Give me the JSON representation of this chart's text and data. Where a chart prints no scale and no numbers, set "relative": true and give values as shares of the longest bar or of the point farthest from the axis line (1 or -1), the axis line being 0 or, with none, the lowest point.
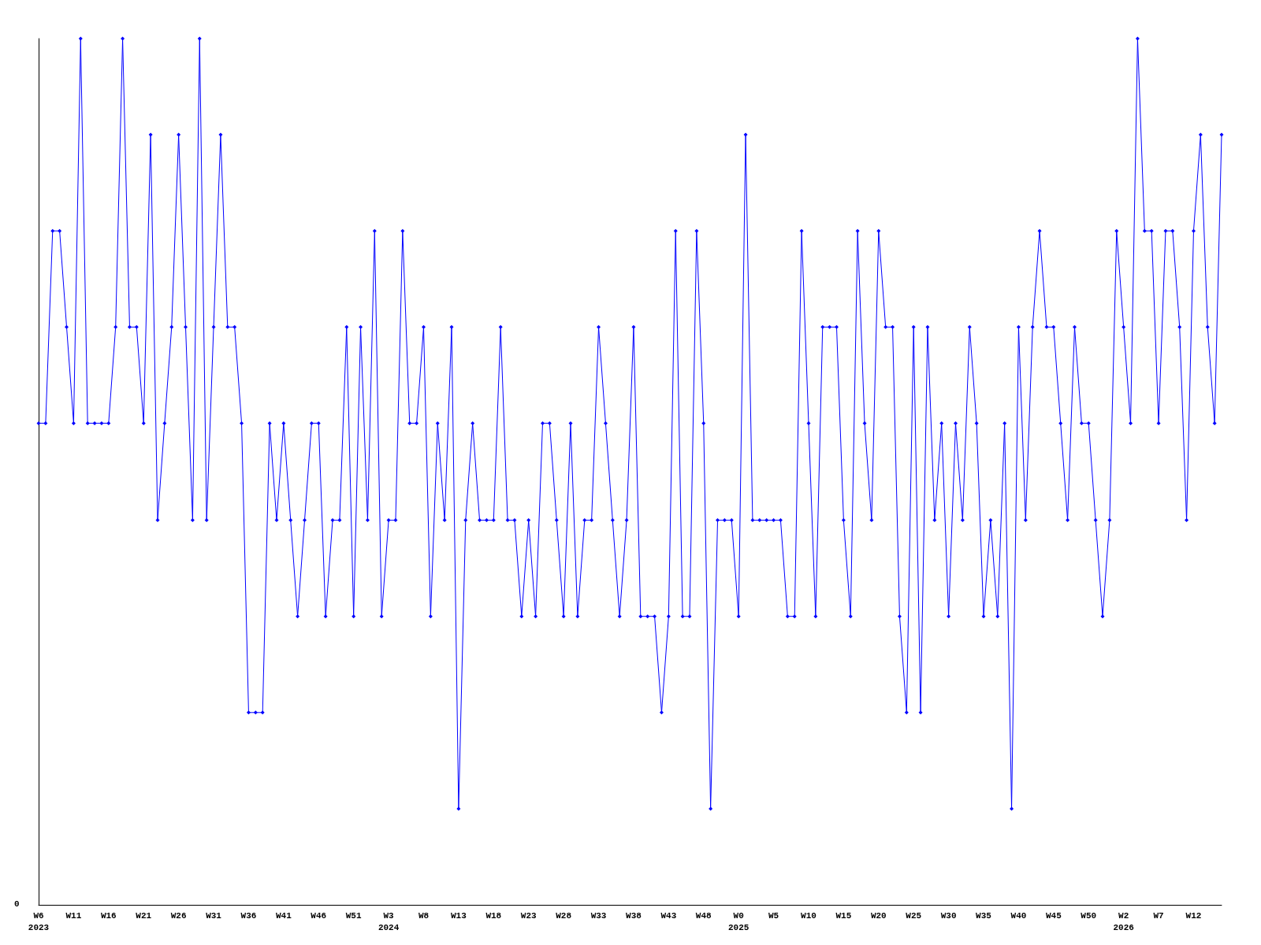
{
  "chart_data": {
    "type": "line",
    "relative": true,
    "categories": [
      "W6\n2023",
      null,
      null,
      null,
      null,
      "W11",
      null,
      null,
      null,
      null,
      "W16",
      null,
      null,
      null,
      null,
      "W21",
      null,
      null,
      null,
      null,
      "W26",
      null,
      null,
      null,
      null,
      "W31",
      null,
      null,
      null,
      null,
      "W36",
      null,
      null,
      null,
      null,
      "W41",
      null,
      null,
      null,
      null,
      "W46",
      null,
      null,
      null,
      null,
      "W51",
      null,
      null,
      null,
      null,
      "W3\n2024",
      null,
      null,
      null,
      null,
      "W8",
      null,
      null,
      null,
      null,
      "W13",
      null,
      null,
      null,
      null,
      "W18",
      null,
      null,
      null,
      null,
      "W23",
      null,
      null,
      null,
      null,
      "W28",
      null,
      null,
      null,
      null,
      "W33",
      null,
      null,
      null,
      null,
      "W38",
      null,
      null,
      null,
      null,
      "W43",
      null,
      null,
      null,
      null,
      "W48",
      null,
      null,
      null,
      null,
      "W0\n2025",
      null,
      null,
      null,
      null,
      "W5",
      null,
      null,
      null,
      null,
      "W10",
      null,
      null,
      null,
      null,
      "W15",
      null,
      null,
      null,
      null,
      "W20",
      null,
      null,
      null,
      null,
      "W25",
      null,
      null,
      null,
      null,
      "W30",
      null,
      null,
      null,
      null,
      "W35",
      null,
      null,
      null,
      null,
      "W40",
      null,
      null,
      null,
      null,
      "W45",
      null,
      null,
      null,
      null,
      "W50",
      null,
      null,
      null,
      null,
      "W2\n2026",
      null,
      null,
      null,
      null,
      "W7",
      null,
      null,
      null,
      null,
      "W12",
      null,
      null,
      null,
      null
    ],
    "series": [
      {
        "color": "#0000ff",
        "values": [
          0.556,
          0.556,
          0.778,
          0.778,
          0.667,
          0.556,
          1,
          0.556,
          0.556,
          0.556,
          0.556,
          0.667,
          1,
          0.667,
          0.667,
          0.556,
          0.889,
          0.444,
          0.556,
          0.667,
          0.889,
          0.667,
          0.444,
          1,
          0.444,
          0.667,
          0.889,
          0.667,
          0.667,
          0.556,
          0.222,
          0.222,
          0.222,
          0.556,
          0.444,
          0.556,
          0.444,
          0.333,
          0.444,
          0.556,
          0.556,
          0.333,
          0.444,
          0.444,
          0.667,
          0.333,
          0.667,
          0.444,
          0.778,
          0.333,
          0.444,
          0.444,
          0.778,
          0.556,
          0.556,
          0.667,
          0.333,
          0.556,
          0.444,
          0.667,
          0.111,
          0.444,
          0.556,
          0.444,
          0.444,
          0.444,
          0.667,
          0.444,
          0.444,
          0.333,
          0.444,
          0.333,
          0.556,
          0.556,
          0.444,
          0.333,
          0.556,
          0.333,
          0.444,
          0.444,
          0.667,
          0.556,
          0.444,
          0.333,
          0.444,
          0.667,
          0.333,
          0.333,
          0.333,
          0.222,
          0.333,
          0.778,
          0.333,
          0.333,
          0.778,
          0.556,
          0.111,
          0.444,
          0.444,
          0.444,
          0.333,
          0.889,
          0.444,
          0.444,
          0.444,
          0.444,
          0.444,
          0.333,
          0.333,
          0.778,
          0.556,
          0.333,
          0.667,
          0.667,
          0.667,
          0.444,
          0.333,
          0.778,
          0.556,
          0.444,
          0.778,
          0.667,
          0.667,
          0.333,
          0.222,
          0.667,
          0.222,
          0.667,
          0.444,
          0.556,
          0.333,
          0.556,
          0.444,
          0.667,
          0.556,
          0.333,
          0.444,
          0.333,
          0.556,
          0.111,
          0.667,
          0.444,
          0.667,
          0.778,
          0.667,
          0.667,
          0.556,
          0.444,
          0.667,
          0.556,
          0.556,
          0.444,
          0.333,
          0.444,
          0.778,
          0.667,
          0.556,
          1,
          0.778,
          0.778,
          0.556,
          0.778,
          0.778,
          0.667,
          0.444,
          0.778,
          0.889,
          0.667,
          0.556,
          0.889
        ]
      }
    ],
    "annotations": [
      "0"
    ],
    "marker": "diamond",
    "line_style": "solid"
  }
}
